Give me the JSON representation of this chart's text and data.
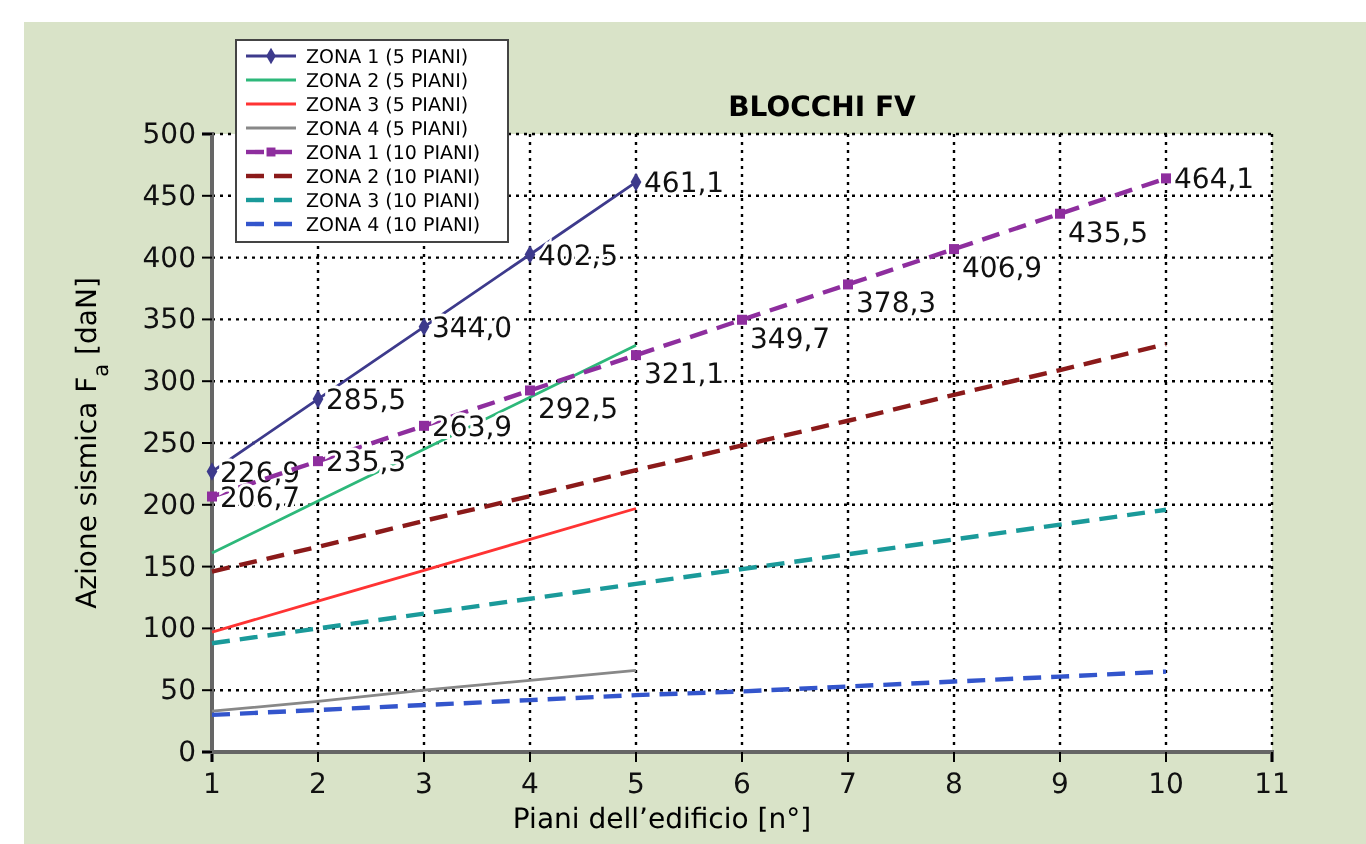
{
  "chart_data": {
    "type": "line",
    "title": "BLOCCHI FV",
    "xlabel": "Piani dell’edificio [n°]",
    "ylabel": "Azione sismica F$_{a}$ [daN]",
    "xlim": [
      1,
      11
    ],
    "xticks": [
      1,
      2,
      3,
      4,
      5,
      6,
      7,
      8,
      9,
      10,
      11
    ],
    "ylim": [
      0,
      500
    ],
    "yticks": [
      0,
      50,
      100,
      150,
      200,
      250,
      300,
      350,
      400,
      450,
      500
    ],
    "grid": true,
    "legend": "top left",
    "series": [
      {
        "name": "ZONA 1 (5 PIANI)",
        "color": "#3d3a8c",
        "line_style": "solid",
        "marker": "diamond",
        "x": [
          1,
          2,
          3,
          4,
          5
        ],
        "values": [
          226.9,
          285.5,
          344.0,
          402.5,
          461.1
        ],
        "value_labels": [
          "226,9",
          "285,5",
          "344,0",
          "402,5",
          "461,1"
        ]
      },
      {
        "name": "ZONA 2 (5 PIANI)",
        "color": "#2db87a",
        "line_style": "solid",
        "marker": "none",
        "x": [
          1,
          2,
          3,
          4,
          5
        ],
        "values": [
          161,
          203,
          245,
          287,
          329
        ]
      },
      {
        "name": "ZONA 3 (5 PIANI)",
        "color": "#ff3333",
        "line_style": "solid",
        "marker": "none",
        "x": [
          1,
          2,
          3,
          4,
          5
        ],
        "values": [
          97,
          122,
          147,
          172,
          197
        ]
      },
      {
        "name": "ZONA 4 (5 PIANI)",
        "color": "#888888",
        "line_style": "solid",
        "marker": "none",
        "x": [
          1,
          2,
          3,
          4,
          5
        ],
        "values": [
          33,
          41,
          50,
          58,
          66
        ]
      },
      {
        "name": "ZONA 1 (10 PIANI)",
        "color": "#8e2e9e",
        "line_style": "dashed",
        "marker": "square",
        "x": [
          1,
          2,
          3,
          4,
          5,
          6,
          7,
          8,
          9,
          10
        ],
        "values": [
          206.7,
          235.3,
          263.9,
          292.5,
          321.1,
          349.7,
          378.3,
          406.9,
          435.5,
          464.1
        ],
        "value_labels": [
          "206,7",
          "235,3",
          "263,9",
          "292,5",
          "321,1",
          "349,7",
          "378,3",
          "406,9",
          "435,5",
          "464,1"
        ]
      },
      {
        "name": "ZONA 2 (10 PIANI)",
        "color": "#8b1a1a",
        "line_style": "dashed",
        "marker": "none",
        "x": [
          1,
          2,
          3,
          4,
          5,
          6,
          7,
          8,
          9,
          10
        ],
        "values": [
          146,
          166,
          187,
          207,
          228,
          248,
          268,
          289,
          309,
          330
        ]
      },
      {
        "name": "ZONA 3 (10 PIANI)",
        "color": "#1a9a9a",
        "line_style": "dashed",
        "marker": "none",
        "x": [
          1,
          2,
          3,
          4,
          5,
          6,
          7,
          8,
          9,
          10
        ],
        "values": [
          88,
          100,
          112,
          124,
          136,
          148,
          160,
          172,
          184,
          196
        ]
      },
      {
        "name": "ZONA 4 (10 PIANI)",
        "color": "#3355cc",
        "line_style": "dashed",
        "marker": "none",
        "x": [
          1,
          2,
          3,
          4,
          5,
          6,
          7,
          8,
          9,
          10
        ],
        "values": [
          30,
          34,
          38,
          42,
          46,
          49,
          53,
          57,
          61,
          65
        ]
      }
    ]
  }
}
